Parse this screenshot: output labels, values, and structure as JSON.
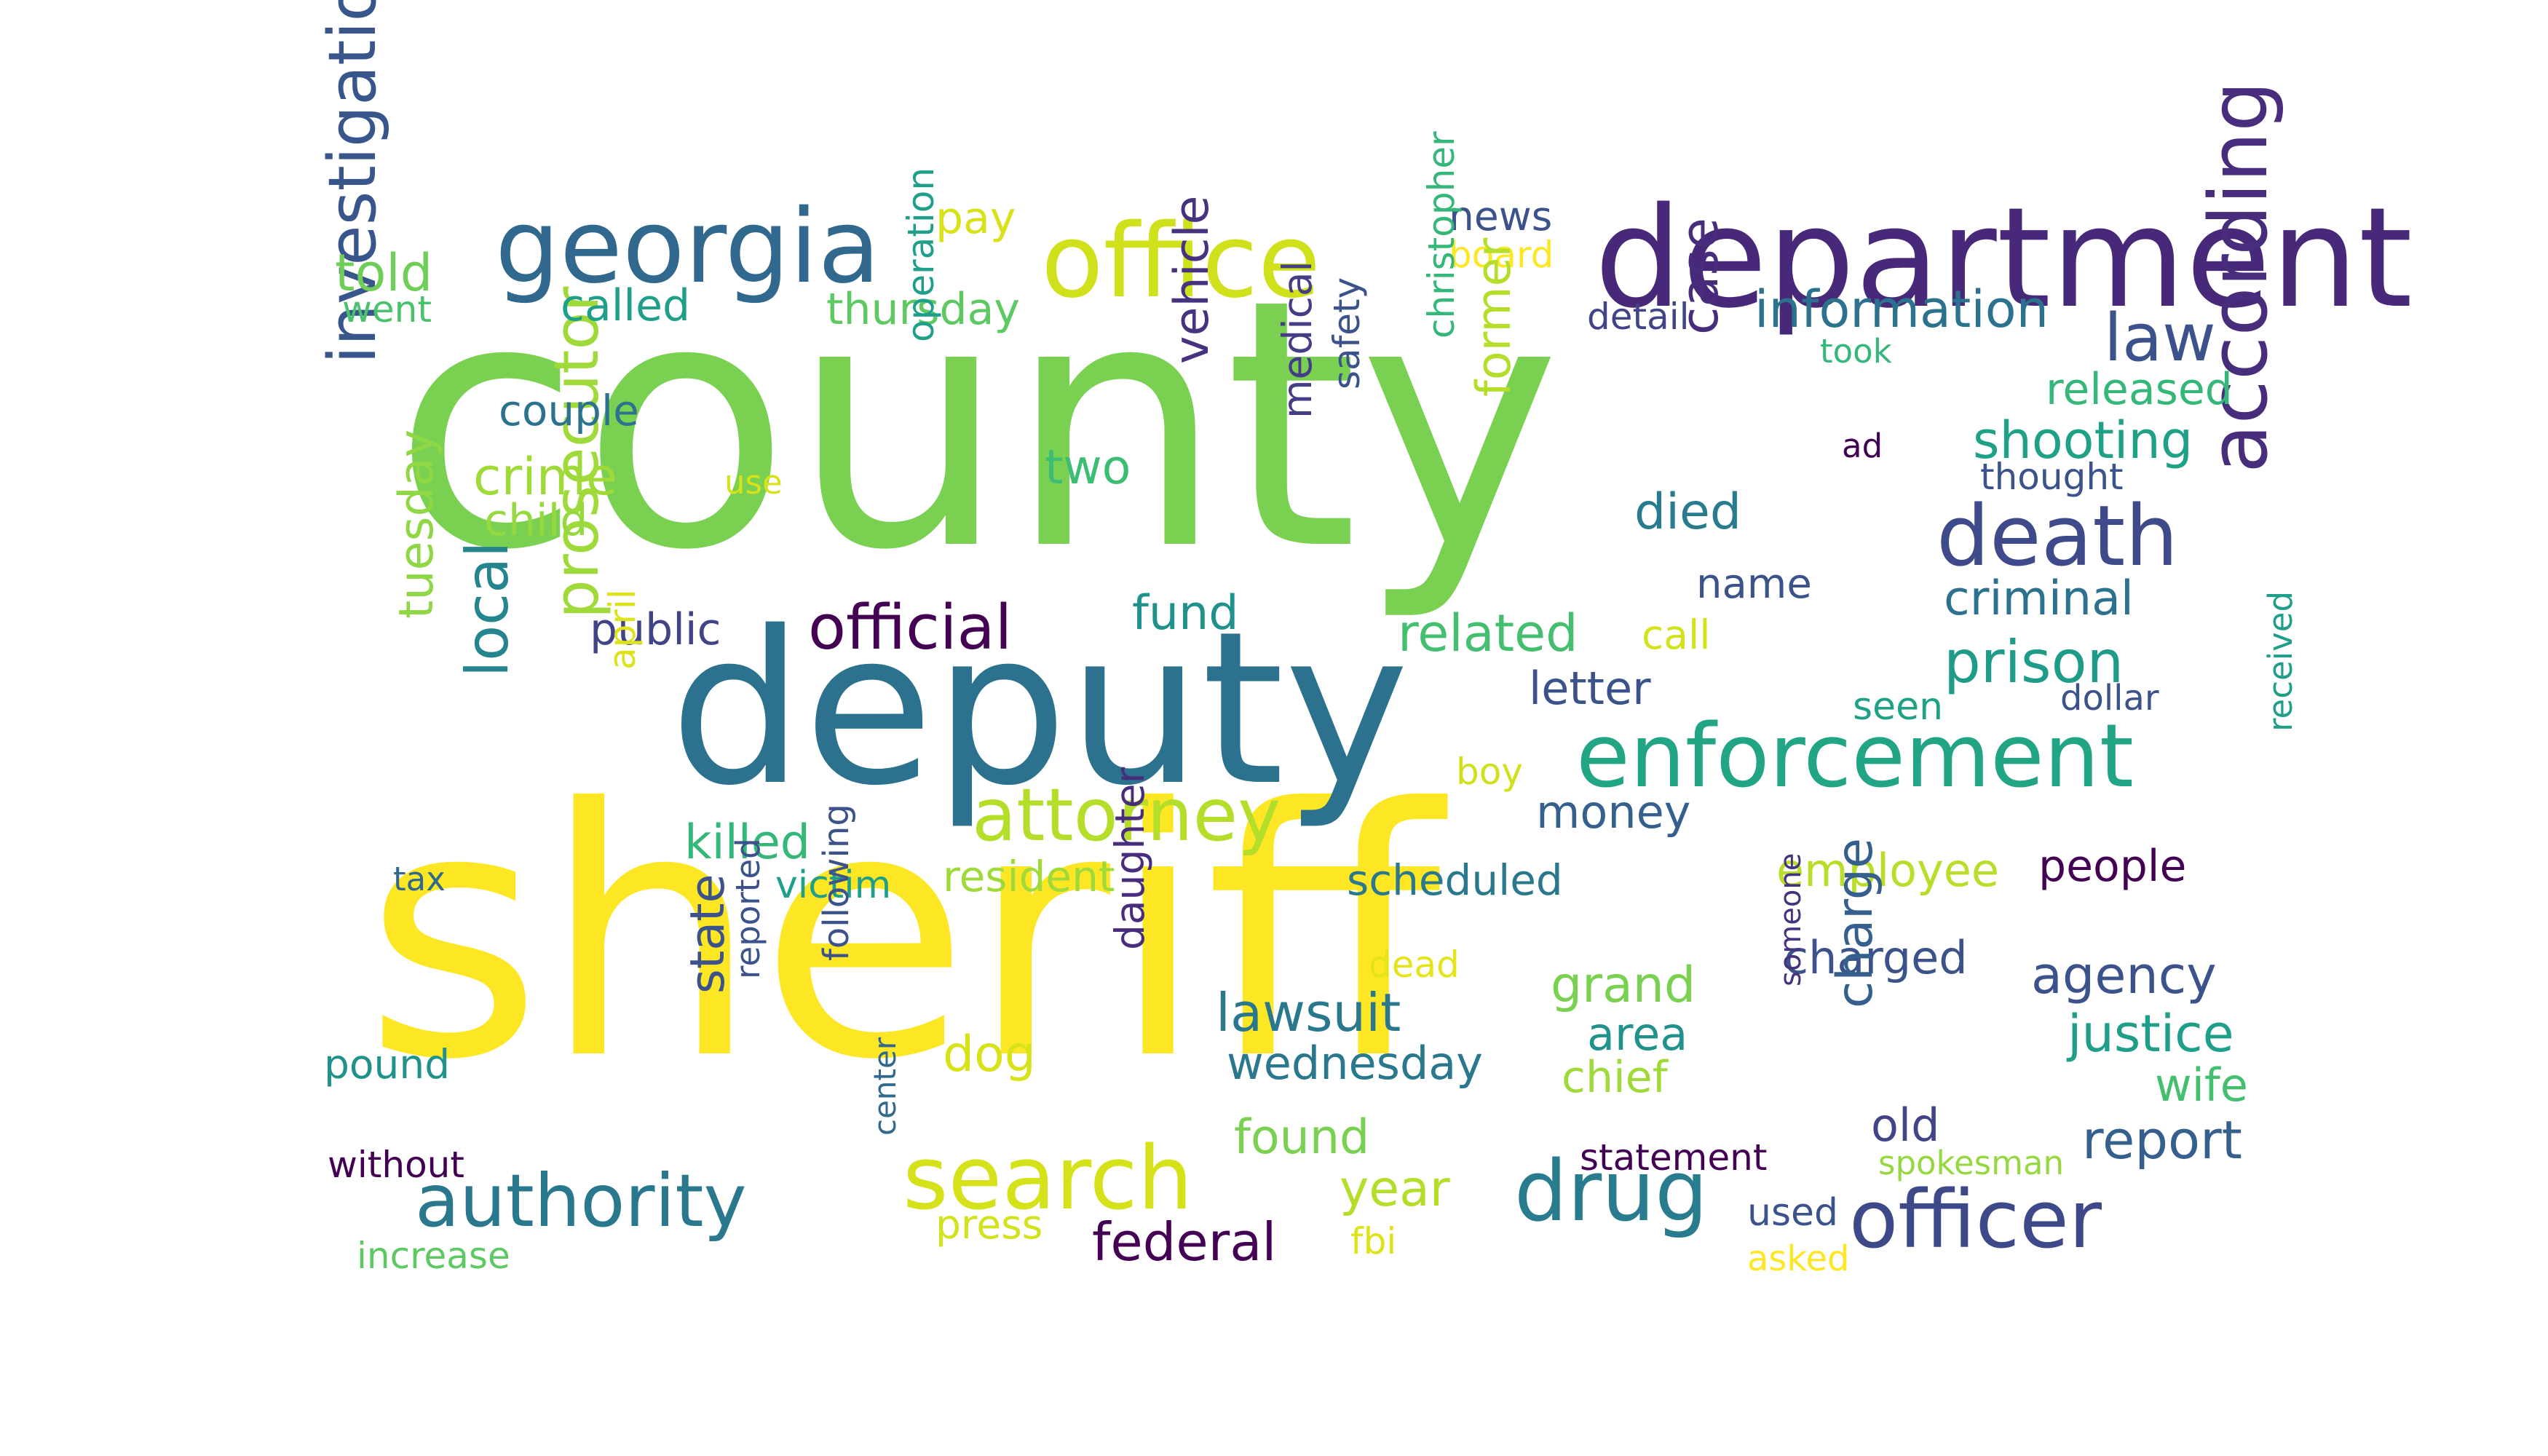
{
  "words": [
    {
      "text": "county",
      "color": "#7ad151"
    },
    {
      "text": "sheriff",
      "color": "#fde725"
    },
    {
      "text": "deputy",
      "color": "#2c728e"
    },
    {
      "text": "department",
      "color": "#482878"
    },
    {
      "text": "georgia",
      "color": "#31688e"
    },
    {
      "text": "office",
      "color": "#d0e11c"
    },
    {
      "text": "enforcement",
      "color": "#21a585"
    },
    {
      "text": "death",
      "color": "#3e4a89"
    },
    {
      "text": "attorney",
      "color": "#b5de2b"
    },
    {
      "text": "officer",
      "color": "#3e4989"
    },
    {
      "text": "authority",
      "color": "#2a788e"
    },
    {
      "text": "search",
      "color": "#d5e21a"
    },
    {
      "text": "drug",
      "color": "#287c8e"
    },
    {
      "text": "according",
      "color": "#472d7b"
    },
    {
      "text": "investigation",
      "color": "#39568c"
    },
    {
      "text": "law",
      "color": "#3b528b"
    },
    {
      "text": "information",
      "color": "#2c728e"
    },
    {
      "text": "official",
      "color": "#440154"
    },
    {
      "text": "prosecutor",
      "color": "#9fda3a"
    },
    {
      "text": "local",
      "color": "#25858e"
    },
    {
      "text": "prison",
      "color": "#1e9c89"
    },
    {
      "text": "told",
      "color": "#6ece58"
    },
    {
      "text": "went",
      "color": "#4ac16d"
    },
    {
      "text": "called",
      "color": "#1f9e89"
    },
    {
      "text": "thursday",
      "color": "#5ec962"
    },
    {
      "text": "pay",
      "color": "#d8e219"
    },
    {
      "text": "news",
      "color": "#3b528b"
    },
    {
      "text": "board",
      "color": "#fde725"
    },
    {
      "text": "detail",
      "color": "#414487"
    },
    {
      "text": "took",
      "color": "#35b779"
    },
    {
      "text": "released",
      "color": "#35b779"
    },
    {
      "text": "shooting",
      "color": "#1fa187"
    },
    {
      "text": "ad",
      "color": "#440154"
    },
    {
      "text": "thought",
      "color": "#3b528b"
    },
    {
      "text": "couple",
      "color": "#2c728e"
    },
    {
      "text": "crime",
      "color": "#a0da39"
    },
    {
      "text": "child",
      "color": "#95d840"
    },
    {
      "text": "use",
      "color": "#d8e219"
    },
    {
      "text": "two",
      "color": "#3dbc74"
    },
    {
      "text": "operation",
      "color": "#1f9e89"
    },
    {
      "text": "vehicle",
      "color": "#46327e"
    },
    {
      "text": "medical",
      "color": "#433e85"
    },
    {
      "text": "safety",
      "color": "#3b528b"
    },
    {
      "text": "christopher",
      "color": "#35b779"
    },
    {
      "text": "former",
      "color": "#b5de2b"
    },
    {
      "text": "case",
      "color": "#472d7b"
    },
    {
      "text": "died",
      "color": "#287c8e"
    },
    {
      "text": "name",
      "color": "#3b528b"
    },
    {
      "text": "criminal",
      "color": "#2c728e"
    },
    {
      "text": "fund",
      "color": "#21918c"
    },
    {
      "text": "related",
      "color": "#44bf70"
    },
    {
      "text": "call",
      "color": "#d2e21b"
    },
    {
      "text": "public",
      "color": "#414487"
    },
    {
      "text": "tuesday",
      "color": "#8fd744"
    },
    {
      "text": "april",
      "color": "#dde318"
    },
    {
      "text": "letter",
      "color": "#3b528b"
    },
    {
      "text": "seen",
      "color": "#1fa187"
    },
    {
      "text": "dollar",
      "color": "#3b528b"
    },
    {
      "text": "boy",
      "color": "#d0e11c"
    },
    {
      "text": "money",
      "color": "#355f8d"
    },
    {
      "text": "killed",
      "color": "#35b779"
    },
    {
      "text": "tax",
      "color": "#31688e"
    },
    {
      "text": "victim",
      "color": "#1f9e89"
    },
    {
      "text": "resident",
      "color": "#9fda3a"
    },
    {
      "text": "scheduled",
      "color": "#2a788e"
    },
    {
      "text": "employee",
      "color": "#b8de29"
    },
    {
      "text": "people",
      "color": "#440154"
    },
    {
      "text": "received",
      "color": "#1f9e89"
    },
    {
      "text": "dead",
      "color": "#e5e419"
    },
    {
      "text": "grand",
      "color": "#7ad151"
    },
    {
      "text": "charged",
      "color": "#3b528b"
    },
    {
      "text": "agency",
      "color": "#3b528b"
    },
    {
      "text": "lawsuit",
      "color": "#2a788e"
    },
    {
      "text": "area",
      "color": "#21918c"
    },
    {
      "text": "justice",
      "color": "#1f9e89"
    },
    {
      "text": "state",
      "color": "#3b528b"
    },
    {
      "text": "reported",
      "color": "#3b528b"
    },
    {
      "text": "following",
      "color": "#3b528b"
    },
    {
      "text": "daughter",
      "color": "#472d7b"
    },
    {
      "text": "dog",
      "color": "#d8e219"
    },
    {
      "text": "wednesday",
      "color": "#2a788e"
    },
    {
      "text": "chief",
      "color": "#a0da39"
    },
    {
      "text": "someone",
      "color": "#46327e"
    },
    {
      "text": "charge",
      "color": "#355f8d"
    },
    {
      "text": "wife",
      "color": "#44bf70"
    },
    {
      "text": "pound",
      "color": "#21918c"
    },
    {
      "text": "old",
      "color": "#414487"
    },
    {
      "text": "report",
      "color": "#355f8d"
    },
    {
      "text": "found",
      "color": "#7ad151"
    },
    {
      "text": "without",
      "color": "#440154"
    },
    {
      "text": "statement",
      "color": "#440154"
    },
    {
      "text": "spokesman",
      "color": "#95d840"
    },
    {
      "text": "center",
      "color": "#31688e"
    },
    {
      "text": "year",
      "color": "#b5de2b"
    },
    {
      "text": "press",
      "color": "#d2e21b"
    },
    {
      "text": "federal",
      "color": "#440154"
    },
    {
      "text": "used",
      "color": "#3b528b"
    },
    {
      "text": "fbi",
      "color": "#dde318"
    },
    {
      "text": "increase",
      "color": "#5ec962"
    },
    {
      "text": "asked",
      "color": "#fde725"
    }
  ]
}
